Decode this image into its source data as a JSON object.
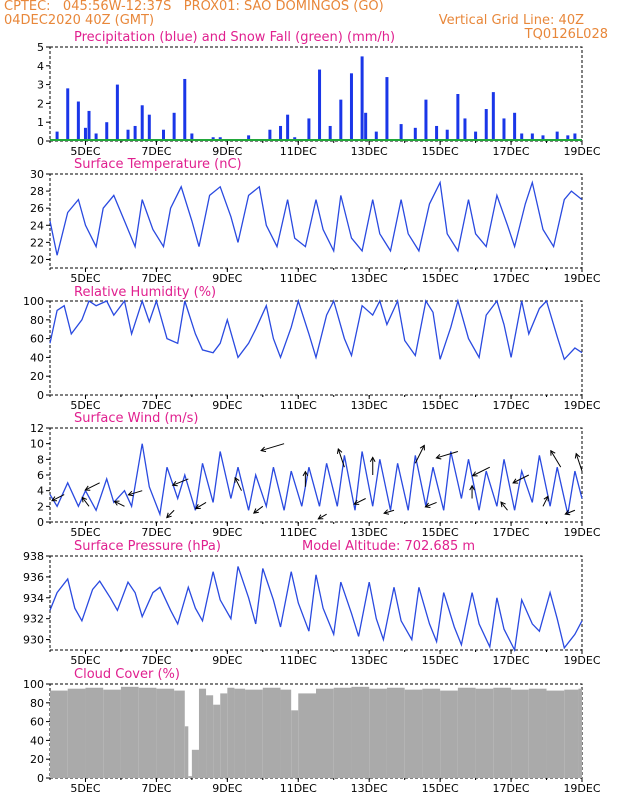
{
  "header": {
    "line1": "CPTEC:   045:56W-12:37S   PROX01: SAO DOMINGOS (GO)",
    "line2": "04DEC2020 40Z (GMT)",
    "grid_note": "Vertical Grid Line: 40Z",
    "code": "TQ0126L028"
  },
  "colors": {
    "header": "#e8873a",
    "title": "#e0208f",
    "precip": "#1a36e8",
    "snow": "#22a83a",
    "line": "#2a4ae0",
    "cloud": "#aaaaaa",
    "arrow": "#000000"
  },
  "x_axis": {
    "ticks": [
      "5DEC",
      "7DEC",
      "9DEC",
      "11DEC",
      "13DEC",
      "15DEC",
      "17DEC",
      "19DEC"
    ],
    "range_days": [
      4.0,
      19.0
    ]
  },
  "chart_data": [
    {
      "type": "bar",
      "title": "Precipitation (blue) and Snow Fall (green) (mm/h)",
      "ylim": [
        0,
        5
      ],
      "yticks": [
        "0",
        "1",
        "2",
        "3",
        "4",
        "5"
      ],
      "series": [
        {
          "name": "Precipitation",
          "x": [
            4.2,
            4.5,
            4.8,
            5.0,
            5.1,
            5.3,
            5.6,
            5.9,
            6.2,
            6.4,
            6.6,
            6.8,
            7.2,
            7.5,
            7.8,
            8.0,
            8.6,
            8.8,
            9.2,
            9.6,
            10.2,
            10.5,
            10.7,
            10.9,
            11.3,
            11.6,
            11.9,
            12.2,
            12.5,
            12.8,
            12.9,
            13.2,
            13.5,
            13.9,
            14.3,
            14.6,
            14.9,
            15.2,
            15.5,
            15.7,
            16.0,
            16.3,
            16.5,
            16.8,
            17.1,
            17.3,
            17.6,
            17.9,
            18.3,
            18.6,
            18.8
          ],
          "values": [
            0.5,
            2.8,
            2.1,
            0.7,
            1.6,
            0.4,
            1.0,
            3.0,
            0.6,
            0.8,
            1.9,
            1.4,
            0.6,
            1.5,
            3.3,
            0.4,
            0.2,
            0.2,
            0.1,
            0.3,
            0.6,
            0.8,
            1.4,
            0.2,
            1.2,
            3.8,
            0.8,
            2.2,
            3.6,
            4.5,
            1.5,
            0.5,
            3.4,
            0.9,
            0.7,
            2.2,
            0.8,
            0.6,
            2.5,
            1.2,
            0.5,
            1.7,
            2.6,
            1.2,
            1.5,
            0.4,
            0.4,
            0.3,
            0.5,
            0.3,
            0.4
          ]
        },
        {
          "name": "Snow Fall",
          "x": [
            4.0,
            19.0
          ],
          "values": [
            0.0,
            0.0
          ]
        }
      ]
    },
    {
      "type": "line",
      "title": "Surface Temperature (nC)",
      "ylim": [
        19,
        30
      ],
      "yticks": [
        "20",
        "22",
        "24",
        "26",
        "28",
        "30"
      ],
      "x": [
        4.0,
        4.2,
        4.5,
        4.8,
        5.0,
        5.3,
        5.5,
        5.8,
        6.1,
        6.4,
        6.6,
        6.9,
        7.2,
        7.4,
        7.7,
        8.0,
        8.2,
        8.5,
        8.8,
        9.1,
        9.3,
        9.6,
        9.9,
        10.1,
        10.4,
        10.7,
        10.9,
        11.2,
        11.5,
        11.7,
        12.0,
        12.2,
        12.5,
        12.8,
        13.1,
        13.3,
        13.6,
        13.9,
        14.1,
        14.4,
        14.7,
        15.0,
        15.2,
        15.5,
        15.8,
        16.0,
        16.3,
        16.6,
        16.9,
        17.1,
        17.4,
        17.6,
        17.9,
        18.2,
        18.5,
        18.7,
        19.0
      ],
      "values": [
        24.5,
        20.5,
        25.5,
        27.0,
        24.0,
        21.5,
        26.0,
        27.5,
        24.5,
        21.5,
        27.0,
        23.5,
        21.5,
        26.0,
        28.5,
        24.5,
        21.5,
        27.5,
        28.5,
        25.0,
        22.0,
        27.5,
        28.5,
        24.0,
        21.5,
        27.0,
        22.5,
        21.5,
        27.0,
        23.5,
        21.0,
        27.5,
        22.5,
        21.0,
        27.0,
        23.0,
        21.0,
        27.0,
        23.0,
        21.0,
        26.5,
        29.0,
        23.0,
        21.0,
        27.0,
        23.0,
        21.5,
        27.5,
        24.0,
        21.5,
        26.5,
        29.0,
        23.5,
        21.5,
        27.0,
        28.0,
        27.0
      ]
    },
    {
      "type": "line",
      "title": "Relative Humidity (%)",
      "ylim": [
        0,
        100
      ],
      "yticks": [
        "0",
        "20",
        "40",
        "60",
        "80",
        "100"
      ],
      "x": [
        4.0,
        4.2,
        4.4,
        4.6,
        4.9,
        5.1,
        5.3,
        5.6,
        5.8,
        6.1,
        6.3,
        6.6,
        6.8,
        7.0,
        7.3,
        7.6,
        7.8,
        8.1,
        8.3,
        8.6,
        8.8,
        9.0,
        9.3,
        9.6,
        9.8,
        10.1,
        10.3,
        10.5,
        10.8,
        11.0,
        11.3,
        11.5,
        11.8,
        12.0,
        12.3,
        12.5,
        12.8,
        13.1,
        13.3,
        13.5,
        13.8,
        14.0,
        14.3,
        14.6,
        14.8,
        15.0,
        15.3,
        15.5,
        15.8,
        16.1,
        16.3,
        16.6,
        16.8,
        17.0,
        17.3,
        17.5,
        17.8,
        18.0,
        18.3,
        18.5,
        18.8,
        19.0
      ],
      "values": [
        55,
        90,
        95,
        65,
        80,
        100,
        95,
        100,
        85,
        100,
        65,
        100,
        78,
        100,
        60,
        55,
        100,
        65,
        48,
        45,
        55,
        80,
        40,
        55,
        70,
        95,
        60,
        40,
        72,
        100,
        65,
        40,
        85,
        100,
        60,
        42,
        95,
        85,
        100,
        75,
        100,
        58,
        42,
        100,
        88,
        38,
        72,
        100,
        60,
        40,
        85,
        100,
        75,
        40,
        100,
        65,
        92,
        100,
        62,
        38,
        50,
        45
      ]
    },
    {
      "type": "line",
      "title": "Surface Wind (m/s)",
      "ylim": [
        0,
        12
      ],
      "yticks": [
        "0",
        "2",
        "4",
        "6",
        "8",
        "10",
        "12"
      ],
      "x": [
        4.0,
        4.2,
        4.5,
        4.8,
        5.0,
        5.3,
        5.6,
        5.8,
        6.1,
        6.3,
        6.6,
        6.8,
        7.1,
        7.3,
        7.6,
        7.8,
        8.1,
        8.3,
        8.6,
        8.8,
        9.1,
        9.3,
        9.6,
        9.8,
        10.1,
        10.3,
        10.6,
        10.8,
        11.1,
        11.3,
        11.6,
        11.8,
        12.1,
        12.3,
        12.6,
        12.8,
        13.1,
        13.3,
        13.6,
        13.8,
        14.1,
        14.3,
        14.6,
        14.8,
        15.1,
        15.3,
        15.6,
        15.8,
        16.1,
        16.3,
        16.6,
        16.8,
        17.1,
        17.3,
        17.6,
        17.8,
        18.1,
        18.3,
        18.6,
        18.8,
        19.0
      ],
      "values": [
        3.5,
        2.0,
        5.0,
        2.0,
        4.0,
        1.5,
        5.5,
        2.5,
        4.0,
        2.0,
        10.0,
        4.5,
        1.0,
        7.0,
        3.0,
        6.0,
        1.5,
        7.5,
        2.5,
        9.0,
        3.0,
        7.0,
        1.5,
        6.0,
        2.0,
        7.0,
        1.5,
        6.5,
        2.0,
        7.0,
        2.0,
        7.5,
        2.0,
        8.5,
        1.5,
        9.0,
        2.0,
        8.0,
        1.5,
        7.5,
        1.5,
        8.5,
        2.0,
        7.0,
        1.5,
        9.0,
        3.0,
        8.0,
        1.5,
        6.5,
        2.0,
        8.0,
        1.5,
        6.5,
        2.5,
        8.5,
        2.0,
        7.0,
        1.0,
        6.5,
        3.0
      ],
      "vectors": {
        "x": [
          4.4,
          5.1,
          5.4,
          6.1,
          6.6,
          7.5,
          7.9,
          8.4,
          9.4,
          10.0,
          10.6,
          11.2,
          11.8,
          12.3,
          12.9,
          13.1,
          13.7,
          14.3,
          14.9,
          15.5,
          15.9,
          16.4,
          16.9,
          17.5,
          17.9,
          18.4,
          18.8,
          19.0
        ],
        "u": [
          -1.0,
          -0.3,
          -1.0,
          -0.6,
          -1.0,
          -0.3,
          -1.0,
          -1.0,
          -0.3,
          -0.4,
          -1.0,
          0.0,
          -0.7,
          -0.2,
          -1.0,
          0.0,
          -1.0,
          0.3,
          -1.0,
          -1.0,
          0.0,
          -1.0,
          -0.4,
          -1.0,
          0.3,
          -0.3,
          -1.0,
          -0.2
        ],
        "v": [
          -0.5,
          0.4,
          -0.5,
          0.3,
          -0.3,
          -0.3,
          -0.4,
          -0.6,
          0.6,
          -0.3,
          -0.3,
          0.6,
          -0.4,
          0.6,
          -0.5,
          0.6,
          -0.3,
          0.6,
          -0.4,
          -0.3,
          0.6,
          -0.5,
          0.5,
          -0.5,
          0.6,
          0.5,
          -0.4,
          0.6
        ],
        "speed": [
          3.5,
          2.0,
          5.0,
          2.0,
          4.0,
          1.5,
          5.5,
          2.5,
          4.0,
          2.0,
          10.0,
          4.5,
          1.0,
          7.0,
          3.0,
          6.0,
          1.5,
          7.5,
          2.5,
          9.0,
          3.0,
          7.0,
          1.5,
          6.0,
          2.0,
          7.0,
          1.5,
          6.5
        ]
      }
    },
    {
      "type": "line",
      "title": "Surface Pressure (hPa)",
      "annotation": "Model Altitude: 702.685 m",
      "ylim": [
        929,
        938
      ],
      "yticks": [
        "930",
        "932",
        "934",
        "936",
        "938"
      ],
      "x": [
        4.0,
        4.2,
        4.5,
        4.7,
        4.9,
        5.2,
        5.4,
        5.7,
        5.9,
        6.2,
        6.4,
        6.6,
        6.9,
        7.1,
        7.4,
        7.6,
        7.9,
        8.1,
        8.3,
        8.6,
        8.8,
        9.1,
        9.3,
        9.6,
        9.8,
        10.0,
        10.3,
        10.5,
        10.8,
        11.0,
        11.3,
        11.5,
        11.7,
        12.0,
        12.2,
        12.5,
        12.7,
        13.0,
        13.2,
        13.4,
        13.7,
        13.9,
        14.2,
        14.4,
        14.7,
        14.9,
        15.1,
        15.4,
        15.6,
        15.9,
        16.1,
        16.4,
        16.6,
        16.8,
        17.1,
        17.3,
        17.6,
        17.8,
        18.1,
        18.3,
        18.5,
        18.8,
        19.0
      ],
      "values": [
        932.8,
        934.5,
        935.8,
        933.0,
        931.8,
        934.8,
        935.6,
        934.0,
        932.8,
        935.5,
        934.5,
        932.2,
        934.5,
        935.0,
        932.8,
        931.5,
        935.0,
        933.0,
        931.8,
        936.5,
        933.8,
        932.0,
        937.0,
        934.0,
        931.5,
        936.8,
        933.8,
        931.2,
        936.5,
        933.5,
        930.8,
        936.2,
        933.0,
        930.5,
        935.5,
        932.5,
        930.3,
        935.5,
        932.0,
        930.0,
        935.0,
        931.8,
        930.0,
        935.0,
        931.5,
        929.8,
        934.5,
        931.2,
        929.5,
        934.5,
        931.5,
        929.3,
        934.0,
        931.0,
        929.0,
        933.8,
        931.5,
        930.8,
        934.5,
        932.0,
        929.2,
        930.5,
        931.8
      ]
    },
    {
      "type": "bar",
      "title": "Cloud Cover (%)",
      "ylim": [
        0,
        100
      ],
      "yticks": [
        "0",
        "20",
        "40",
        "60",
        "80",
        "100"
      ],
      "x": [
        4.0,
        4.5,
        5.0,
        5.5,
        6.0,
        6.5,
        7.0,
        7.5,
        7.8,
        7.9,
        8.0,
        8.2,
        8.4,
        8.6,
        8.8,
        9.0,
        9.2,
        9.5,
        10.0,
        10.5,
        10.8,
        11.0,
        11.5,
        12.0,
        12.5,
        13.0,
        13.5,
        14.0,
        14.5,
        15.0,
        15.5,
        16.0,
        16.5,
        17.0,
        17.5,
        18.0,
        18.5,
        18.9
      ],
      "values": [
        93,
        95,
        96,
        94,
        97,
        96,
        95,
        93,
        55,
        2,
        30,
        95,
        88,
        78,
        90,
        96,
        95,
        94,
        96,
        94,
        72,
        90,
        95,
        96,
        97,
        95,
        96,
        94,
        95,
        93,
        96,
        95,
        96,
        94,
        95,
        93,
        94,
        95
      ]
    }
  ]
}
